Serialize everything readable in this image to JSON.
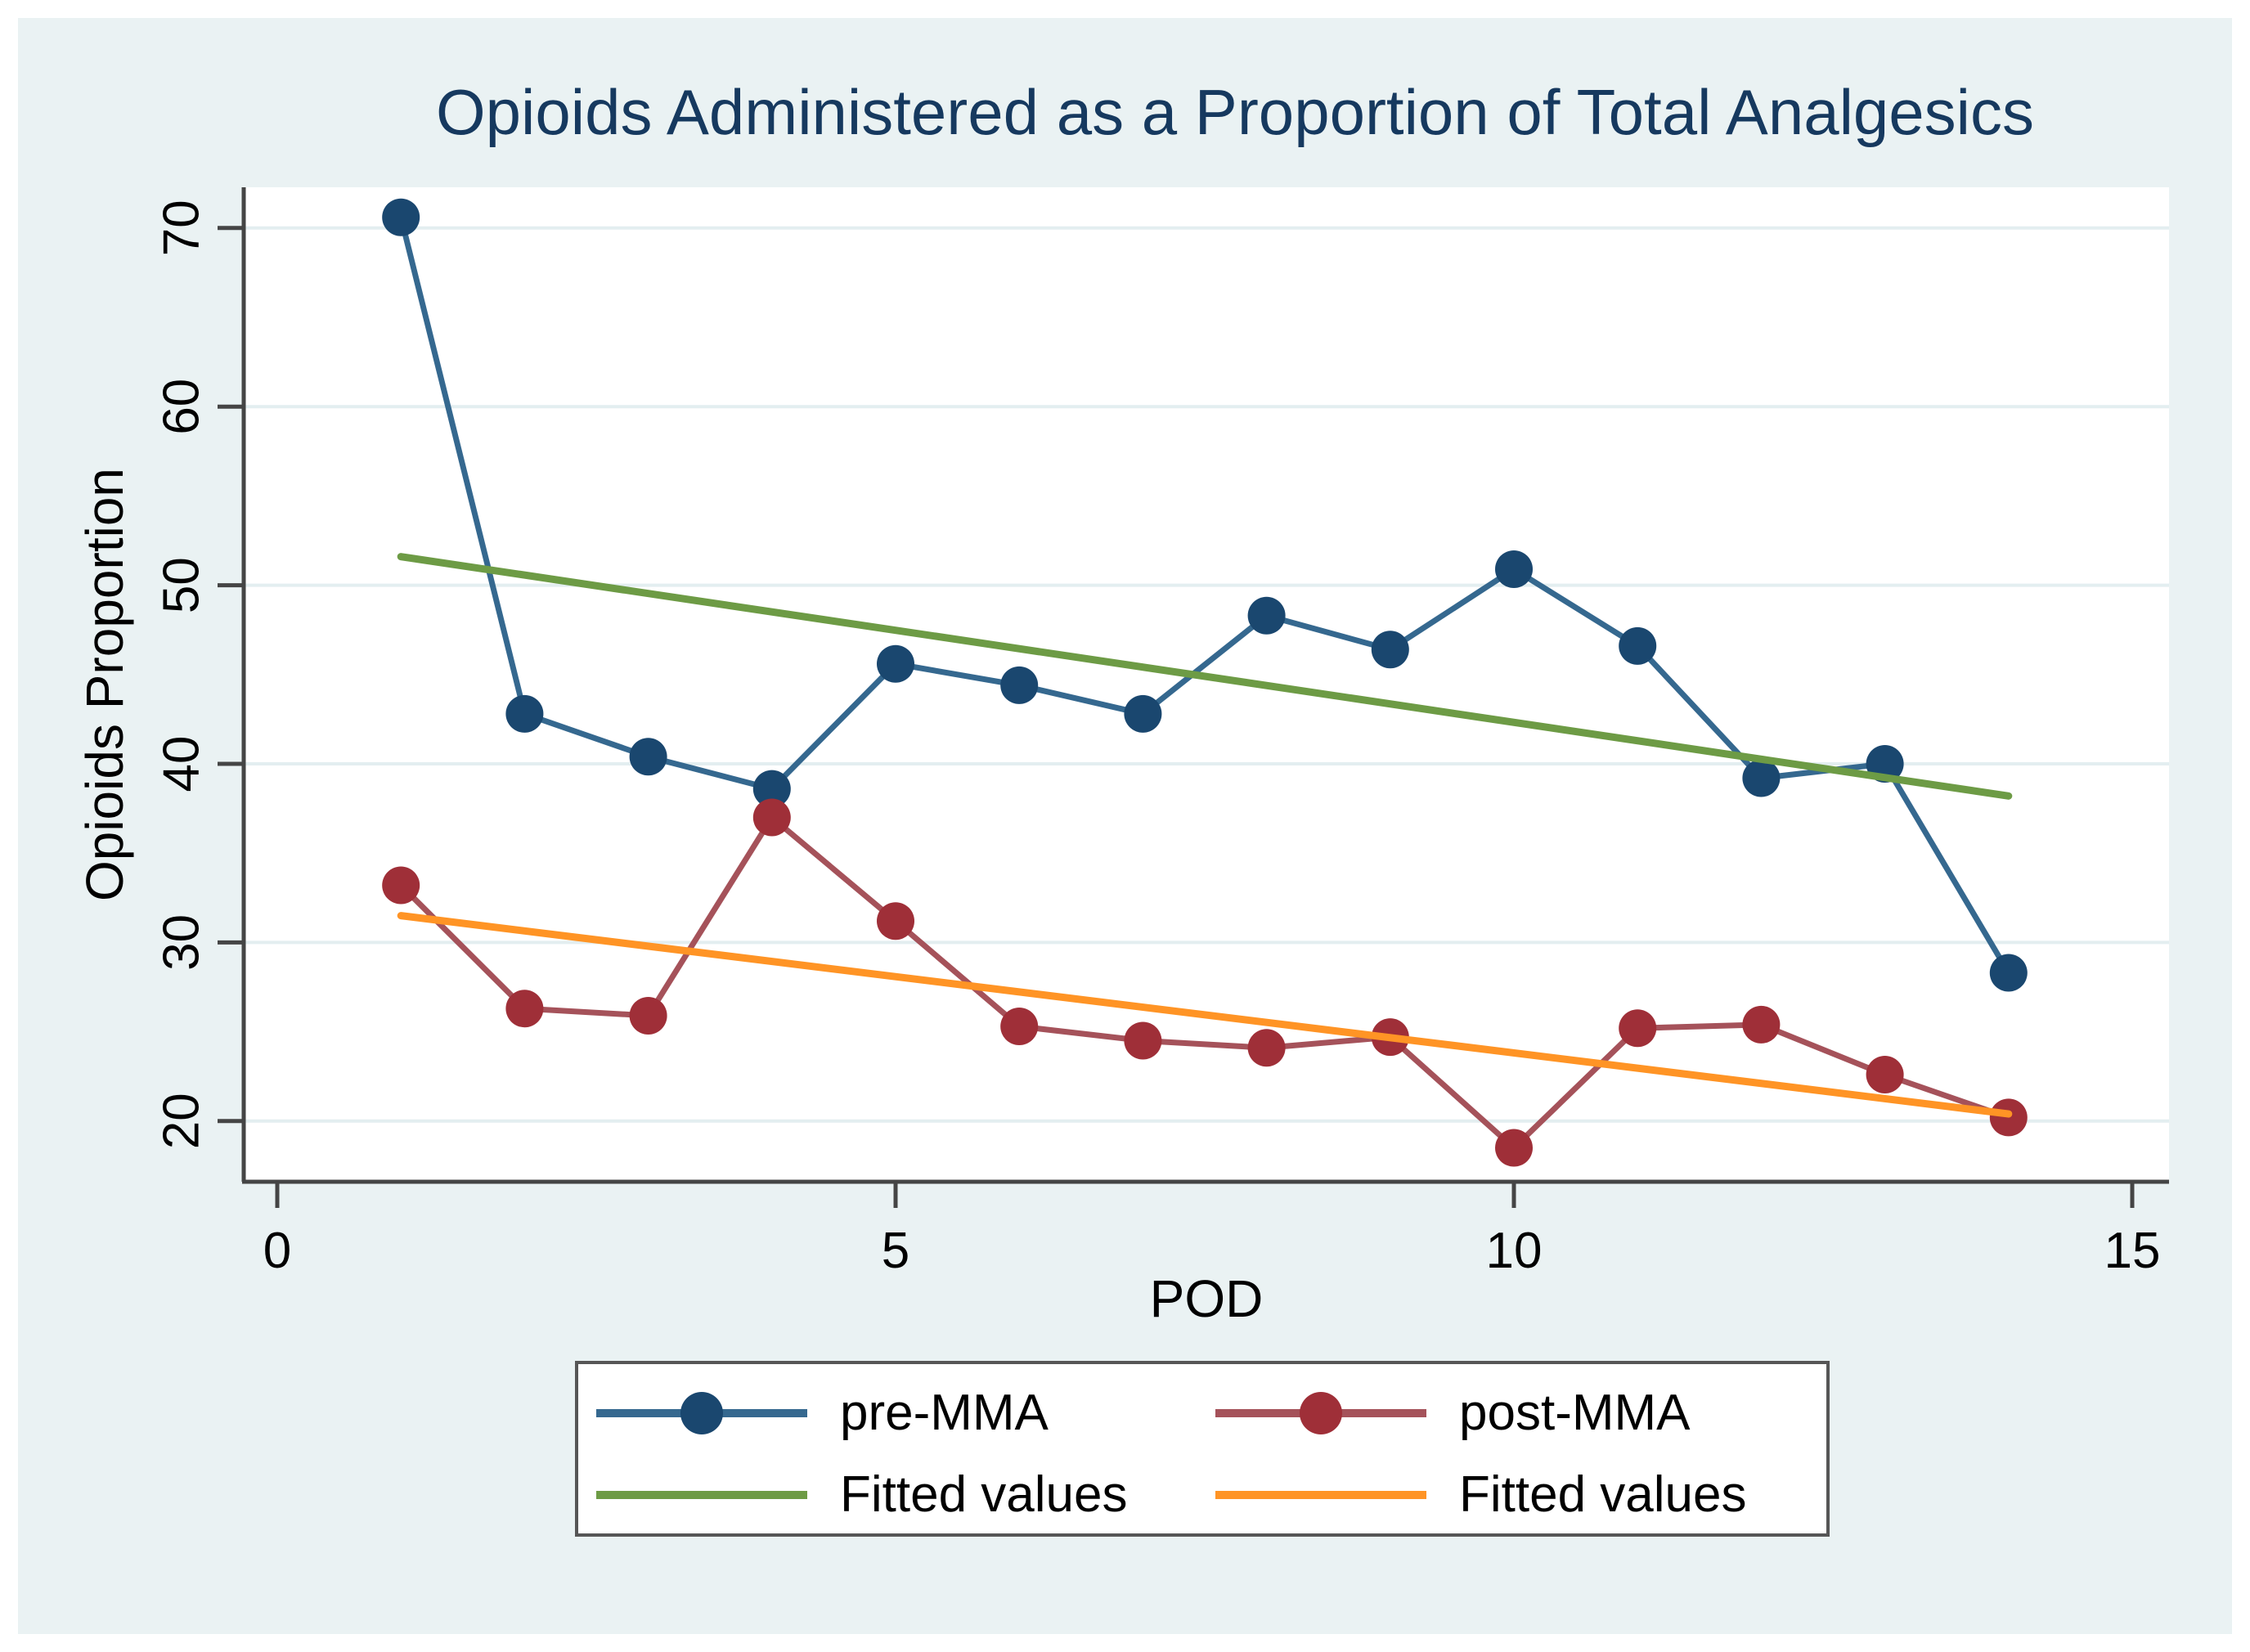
{
  "title": "Opioids Administered as a Proportion of Total Analgesics",
  "axes": {
    "x_label": "POD",
    "y_label": "Opioids Proportion"
  },
  "legend": {
    "items": [
      {
        "label": "pre-MMA",
        "ref": "pre_mma",
        "marker": "line-dot"
      },
      {
        "label": "post-MMA",
        "ref": "post_mma",
        "marker": "line-dot"
      },
      {
        "label": "Fitted values",
        "ref": "fit_pre",
        "marker": "line"
      },
      {
        "label": "Fitted values",
        "ref": "fit_post",
        "marker": "line"
      }
    ]
  },
  "colors": {
    "background": "#eaf2f3",
    "plot_background": "#ffffff",
    "gridline": "#e3eef0",
    "axis": "#454545",
    "title_text": "#16395f",
    "tick_text": "#000000",
    "legend_border": "#565656",
    "pre_mma_line": "#35688f",
    "pre_mma_marker": "#1a476f",
    "post_mma_line": "#a5525a",
    "post_mma_marker": "#9f2f38",
    "fit_pre": "#6d9b45",
    "fit_post": "#ff9425"
  },
  "chart_data": {
    "type": "line",
    "title": "Opioids Administered as a Proportion of Total Analgesics",
    "xlabel": "POD",
    "ylabel": "Opioids Proportion",
    "x_ticks": [
      0,
      5,
      10,
      15
    ],
    "y_ticks": [
      20,
      30,
      40,
      50,
      60,
      70
    ],
    "xlim": [
      -0.3,
      15.3
    ],
    "ylim": [
      16.6,
      72.3
    ],
    "grid": "horizontal-light",
    "legend_position": "bottom",
    "x": [
      1,
      2,
      3,
      4,
      5,
      6,
      7,
      8,
      9,
      10,
      11,
      12,
      13,
      14
    ],
    "series": [
      {
        "name": "pre-MMA",
        "type": "scatter-line",
        "color_ref": "pre_mma",
        "values": [
          70.6,
          42.8,
          40.4,
          38.6,
          45.6,
          44.4,
          42.8,
          48.3,
          46.4,
          50.9,
          46.6,
          39.2,
          40.0,
          28.3
        ]
      },
      {
        "name": "post-MMA",
        "type": "scatter-line",
        "color_ref": "post_mma",
        "values": [
          33.2,
          26.3,
          25.9,
          37.0,
          31.2,
          25.3,
          24.5,
          24.1,
          24.7,
          18.5,
          25.2,
          25.4,
          22.6,
          20.2
        ]
      },
      {
        "name": "Fitted values",
        "type": "linear-fit",
        "color_ref": "fit_pre",
        "x": [
          1,
          14
        ],
        "values": [
          51.6,
          38.2
        ]
      },
      {
        "name": "Fitted values",
        "type": "linear-fit",
        "color_ref": "fit_post",
        "x": [
          1,
          14
        ],
        "values": [
          31.5,
          20.4
        ]
      }
    ]
  }
}
